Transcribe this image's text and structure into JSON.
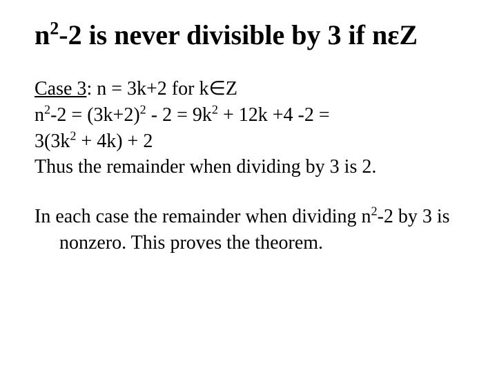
{
  "title": {
    "parts": {
      "p1": "n",
      "sup1": "2",
      "p2": "-2 is never divisible by 3 if n",
      "sym": "ε",
      "p3": "Z"
    }
  },
  "case3": {
    "label_pre": "Case 3",
    "label_post": ": n = 3k+2 for k",
    "elem": "∈",
    "label_end": "Z",
    "line2": {
      "a": "n",
      "sup_a": "2",
      "b": "-2 = (3k+2)",
      "sup_b": "2",
      "c": " - 2 = 9k",
      "sup_c": "2",
      "d": " + 12k +4 -2 ="
    },
    "line3": {
      "a": "3(3k",
      "sup_a": "2",
      "b": " + 4k) + 2"
    },
    "line4": "Thus the remainder when dividing by 3 is 2."
  },
  "conclusion": {
    "a": "In each case the remainder when dividing n",
    "sup": "2",
    "b": "-2 by 3 is nonzero.  This proves the theorem."
  }
}
